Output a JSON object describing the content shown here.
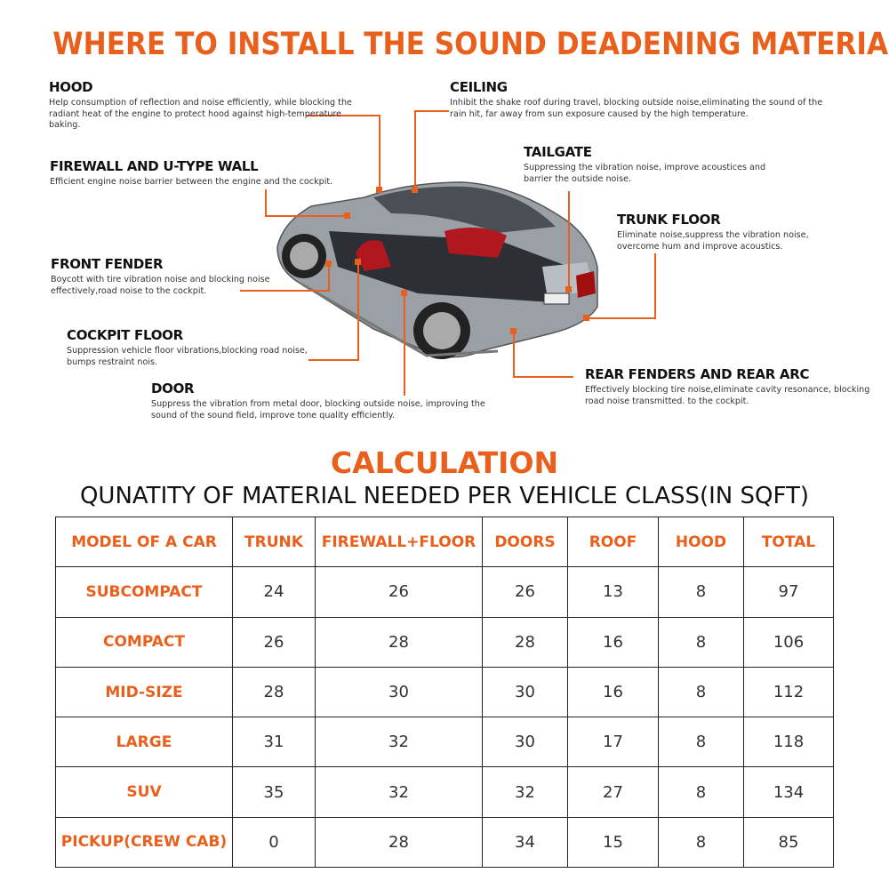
{
  "title": "WHERE TO INSTALL THE SOUND DEADENING MATERIAL",
  "accent_color": "#e8601c",
  "callouts": {
    "hood": {
      "title": "HOOD",
      "text": "Help consumption of reflection and noise efficiently, while blocking the radiant heat of the engine to protect hood against high-temperature baking."
    },
    "ceiling": {
      "title": "CEILING",
      "text": "Inhibit the shake roof during travel, blocking outside noise,eliminating the sound of the rain hit, far away from sun exposure caused by the high temperature."
    },
    "firewall": {
      "title": "FIREWALL AND U-TYPE WALL",
      "text": "Efficient engine noise barrier between the engine and the cockpit."
    },
    "tailgate": {
      "title": "TAILGATE",
      "text": "Suppressing the vibration noise, improve acoustices and barrier the outside noise."
    },
    "trunk_floor": {
      "title": "TRUNK FLOOR",
      "text": "Eliminate noise,suppress the vibration noise, overcome hum and improve acoustics."
    },
    "front_fender": {
      "title": "FRONT FENDER",
      "text": "Boycott with tire vibration noise and blocking noise effectively,road noise to the cockpit."
    },
    "cockpit_floor": {
      "title": "COCKPIT FLOOR",
      "text": "Suppression vehicle floor vibrations,blocking road noise, bumps restraint nois."
    },
    "door": {
      "title": "DOOR",
      "text": "Suppress the vibration from metal door, blocking outside noise, improving the sound of the sound field, improve tone quality efficiently."
    },
    "rear_fenders": {
      "title": "REAR FENDERS AND REAR ARC",
      "text": "Effectively blocking tire noise,eliminate cavity resonance, blocking road noise transmitted. to the cockpit."
    }
  },
  "calculation": {
    "heading": "CALCULATION",
    "subtitle": "QUNATITY OF MATERIAL NEEDED PER VEHICLE CLASS(IN SQFT)"
  },
  "table": {
    "headers": [
      "MODEL OF A CAR",
      "TRUNK",
      "FIREWALL+FLOOR",
      "DOORS",
      "ROOF",
      "HOOD",
      "TOTAL"
    ],
    "rows": [
      [
        "SUBCOMPACT",
        "24",
        "26",
        "26",
        "13",
        "8",
        "97"
      ],
      [
        "COMPACT",
        "26",
        "28",
        "28",
        "16",
        "8",
        "106"
      ],
      [
        "MID-SIZE",
        "28",
        "30",
        "30",
        "16",
        "8",
        "112"
      ],
      [
        "LARGE",
        "31",
        "32",
        "30",
        "17",
        "8",
        "118"
      ],
      [
        "SUV",
        "35",
        "32",
        "32",
        "27",
        "8",
        "134"
      ],
      [
        "PICKUP(CREW CAB)",
        "0",
        "28",
        "34",
        "15",
        "8",
        "85"
      ]
    ]
  }
}
